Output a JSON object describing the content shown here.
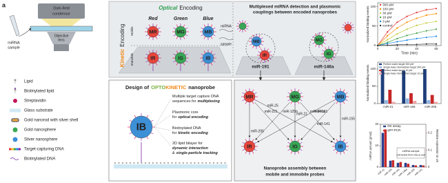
{
  "panel_label": "a",
  "setup": {
    "sample": [
      "miRNA",
      "sample"
    ],
    "condenser": [
      "Dark-field",
      "condensor"
    ],
    "objective": [
      "Objective",
      "lens"
    ]
  },
  "legend": [
    "Lipid",
    "Biotinylated lipid",
    "Streptavidin",
    "Glass substrate",
    "Gold nanorod with silver shell",
    "Gold nanosphere",
    "Silver nanosphere",
    "Target-capturing DNA",
    "Biotinylated DNA"
  ],
  "encoding": {
    "optical": "Optical",
    "optical_rest": "Encoding",
    "kinetic": "Kinetic",
    "kinetic_rest": "Encoding",
    "immobile": "Immobile",
    "mobile": "Mobile",
    "colors": [
      "Red",
      "Green",
      "Blue"
    ],
    "mobile_probes": [
      "MR",
      "MG",
      "MB"
    ],
    "immobile_probes": [
      "IR",
      "IG",
      "IB"
    ],
    "sample": [
      "miRNA",
      "sample"
    ]
  },
  "detection": {
    "title": [
      "Multiplexed miRNA detection and plasmonic",
      "couplings between encoded nanoprobes"
    ],
    "probes": [
      "MB",
      "IR",
      "MG",
      "IG"
    ],
    "targets": [
      "miR-191",
      "miR-146a"
    ]
  },
  "design": {
    "title": [
      "Design of",
      "OPTO",
      "KINETIC",
      "nanoprobe"
    ],
    "probe": "IB",
    "features": [
      [
        [
          {
            "text": "Multiple target capture DNA"
          }
        ],
        [
          {
            "text": "sequences for"
          },
          {
            "text": "multiplexing",
            "bold": true
          }
        ]
      ],
      [
        [
          {
            "text": "Plasmonic core"
          }
        ],
        [
          {
            "text": "for"
          },
          {
            "text": "optical encoding",
            "bold": true
          }
        ]
      ],
      [
        [
          {
            "text": "Biotinylated DNA"
          }
        ],
        [
          {
            "text": "for"
          },
          {
            "text": "kinetic encoding",
            "bold": true
          }
        ]
      ],
      [
        [
          {
            "text": "2D lipid bilayer for"
          }
        ],
        [
          {
            "text": "dynamic interaction",
            "bold": true
          }
        ],
        [
          {
            "text": "&"
          },
          {
            "text": "single-particle tracking",
            "bold": true
          }
        ]
      ]
    ]
  },
  "network": {
    "nodes": [
      "MR",
      "MG",
      "MB",
      "IR",
      "IG",
      "IB"
    ],
    "edges": [
      "miR-221",
      "miR-25",
      "miR-125b",
      "miR-21",
      "miR-146a",
      "miR-191",
      "miR-141",
      "miR-155",
      "miR-205"
    ],
    "caption": [
      "Nanoprobe assembly between",
      "mobile and immobile probes"
    ]
  },
  "chart_data": [
    {
      "type": "line",
      "x": [
        0,
        10,
        20,
        30,
        40,
        50,
        60
      ],
      "xlim": [
        0,
        65
      ],
      "xticks": [
        0,
        20,
        40,
        60
      ],
      "ylim": [
        0,
        110
      ],
      "yticks": [
        0,
        50,
        100
      ],
      "xlabel": "Time (min)",
      "ylabel": "Normalized binding events",
      "series": [
        {
          "name": "300 pM",
          "color": "#e53935",
          "values": [
            0,
            35,
            60,
            75,
            85,
            92,
            95
          ]
        },
        {
          "name": "100 pM",
          "color": "#fb8c00",
          "values": [
            0,
            25,
            45,
            60,
            70,
            78,
            82
          ]
        },
        {
          "name": "30 pM",
          "color": "#c0ca33",
          "values": [
            0,
            15,
            30,
            42,
            52,
            58,
            62
          ]
        },
        {
          "name": "10 pM",
          "color": "#43a047",
          "values": [
            0,
            8,
            18,
            26,
            32,
            38,
            42
          ]
        },
        {
          "name": "3 pM",
          "color": "#1e88e5",
          "values": [
            0,
            5,
            10,
            14,
            18,
            21,
            24
          ]
        },
        {
          "name": "control",
          "color": "#333333",
          "values": [
            0,
            1,
            2,
            3,
            3,
            4,
            4
          ]
        }
      ]
    },
    {
      "type": "bar",
      "categories": [
        "miR-21",
        "miR-155",
        "miR-205"
      ],
      "ylim": [
        0,
        120
      ],
      "yticks": [
        0,
        50,
        100
      ],
      "ylabel": "Normalized binding events",
      "series": [
        {
          "name": "Perfect match target 300 pM",
          "color": "#1f3f7a",
          "values": [
            100,
            95,
            100
          ]
        },
        {
          "name": "Single-base mismatched target 300 pM",
          "color": "#8fb3e0",
          "values": [
            10,
            15,
            10
          ]
        },
        {
          "name": "Perfect match target 10 pM",
          "color": "#c62828",
          "values": [
            40,
            30,
            25
          ]
        },
        {
          "name": "Single-base mismatched target 10 pM",
          "color": "#f0a3a3",
          "values": [
            5,
            8,
            5
          ]
        }
      ]
    },
    {
      "type": "bar",
      "categories": [
        "miR-21",
        "miR-155",
        "miR-191",
        "miR-146a",
        "miR-205",
        "miR-141"
      ],
      "ylim": [
        0,
        20
      ],
      "yticks": [
        0,
        10,
        20
      ],
      "y2lim": [
        0,
        0.25
      ],
      "y2ticks": [
        0,
        0.1,
        0.2
      ],
      "ylabel": "miRNA amount (pmol)",
      "y2label": "Relative expression to U6",
      "annotation": [
        "miRNA sample",
        "extracted from HeLa cell"
      ],
      "series": [
        {
          "name": "OK assay",
          "color": "#2b3f8f",
          "values": [
            16,
            3,
            2,
            2,
            1,
            1
          ]
        },
        {
          "name": "qRT-PCR",
          "color": "#c62828",
          "axis": "y2",
          "values": [
            0.22,
            0.04,
            0.03,
            0.02,
            0.01,
            0.01
          ]
        }
      ]
    }
  ]
}
